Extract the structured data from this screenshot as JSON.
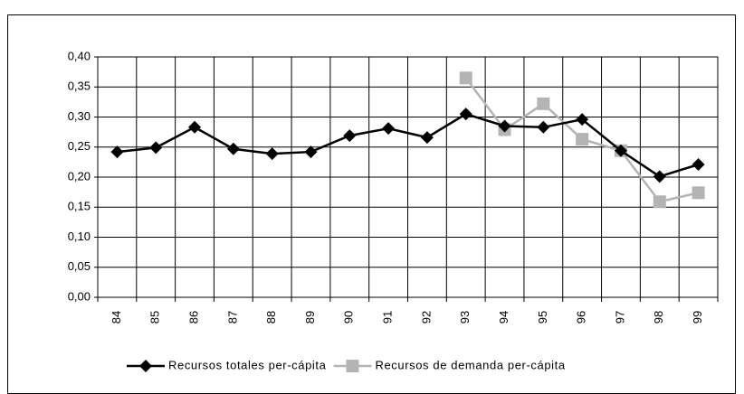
{
  "chart_data": {
    "type": "line",
    "categories": [
      "84",
      "85",
      "86",
      "87",
      "88",
      "89",
      "90",
      "91",
      "92",
      "93",
      "94",
      "95",
      "96",
      "97",
      "98",
      "99"
    ],
    "series": [
      {
        "name": "Recursos totales per-cápita",
        "color": "#000000",
        "marker": "diamond",
        "values": [
          0.242,
          0.249,
          0.283,
          0.247,
          0.239,
          0.242,
          0.269,
          0.281,
          0.266,
          0.305,
          0.285,
          0.283,
          0.296,
          0.244,
          0.201,
          0.221
        ]
      },
      {
        "name": "Recursos de demanda per-cápita",
        "color": "#b4b4b4",
        "marker": "square",
        "values": [
          null,
          null,
          null,
          null,
          null,
          null,
          null,
          null,
          null,
          0.365,
          0.279,
          0.322,
          0.263,
          0.244,
          0.159,
          0.174
        ]
      }
    ],
    "ylim": [
      0,
      0.4
    ],
    "yticks": [
      {
        "value": 0,
        "label": "0,00"
      },
      {
        "value": 0.05,
        "label": "0,05"
      },
      {
        "value": 0.1,
        "label": "0,10"
      },
      {
        "value": 0.15,
        "label": "0,15"
      },
      {
        "value": 0.2,
        "label": "0,20"
      },
      {
        "value": 0.25,
        "label": "0,25"
      },
      {
        "value": 0.3,
        "label": "0,30"
      },
      {
        "value": 0.35,
        "label": "0,35"
      },
      {
        "value": 0.4,
        "label": "0,40"
      }
    ],
    "grid": true,
    "legend": "bottom"
  }
}
